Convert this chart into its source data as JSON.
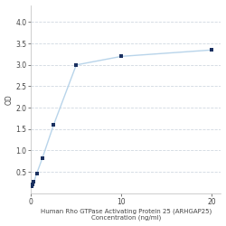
{
  "x": [
    0.078,
    0.156,
    0.313,
    0.625,
    1.25,
    2.5,
    5,
    10,
    20
  ],
  "y": [
    0.175,
    0.205,
    0.26,
    0.46,
    0.82,
    1.6,
    3.0,
    3.2,
    3.35
  ],
  "line_color": "#b8d4ea",
  "marker_color": "#1a3060",
  "marker_style": "s",
  "marker_size": 3.5,
  "line_width": 1.0,
  "xlabel_line1": "Human Rho GTPase Activating Protein 25 (ARHGAP25)",
  "xlabel_line2": "Concentration (ng/ml)",
  "ylabel": "OD",
  "xlabel_fontsize": 5.0,
  "ylabel_fontsize": 5.5,
  "tick_fontsize": 5.5,
  "xlim": [
    0,
    21
  ],
  "ylim": [
    0,
    4.4
  ],
  "yticks": [
    0.5,
    1.0,
    1.5,
    2.0,
    2.5,
    3.0,
    3.5,
    4.0
  ],
  "xticks": [
    0,
    10,
    20
  ],
  "grid_color": "#d0d8e0",
  "background_color": "#ffffff",
  "figure_width": 2.5,
  "figure_height": 2.5
}
